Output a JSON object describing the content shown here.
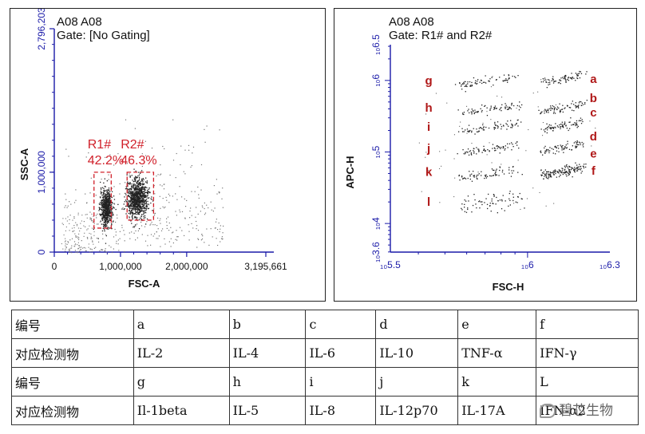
{
  "chart_data": [
    {
      "type": "scatter",
      "title": [
        "A08 A08",
        "Gate: [No Gating]"
      ],
      "xlabel": "FSC-A",
      "ylabel": "SSC-A",
      "xlim": [
        0,
        3195661
      ],
      "ylim": [
        0,
        2796203
      ],
      "xticks": [
        "0",
        "1,000,000",
        "2,000,000",
        "3,195,661"
      ],
      "yticks": [
        "0",
        "1,000,000",
        "2,796,203"
      ],
      "gates": [
        {
          "name": "R1#",
          "percent": "42.2%",
          "x_range": [
            600000,
            860000
          ],
          "y_range": [
            300000,
            1000000
          ]
        },
        {
          "name": "R2#",
          "percent": "46.3%",
          "x_range": [
            1100000,
            1500000
          ],
          "y_range": [
            400000,
            1000000
          ]
        }
      ],
      "populations": [
        {
          "name": "R1# cluster",
          "x": 780000,
          "y": 560000
        },
        {
          "name": "R2# cluster",
          "x": 1250000,
          "y": 680000
        }
      ]
    },
    {
      "type": "scatter",
      "title": [
        "A08 A08",
        "Gate: R1# and R2#"
      ],
      "xlabel": "FSC-H",
      "ylabel": "APC-H",
      "x_scale": "log",
      "y_scale": "log",
      "xlim_log10": [
        5.5,
        6.3
      ],
      "ylim_log10": [
        3.6,
        6.5
      ],
      "xticks": [
        "10^5.5",
        "10^6",
        "10^6.3"
      ],
      "yticks": [
        "10^3.6",
        "10^4",
        "10^5",
        "10^6",
        "10^6.5"
      ],
      "bead_labels_left": [
        "g",
        "h",
        "i",
        "j",
        "k",
        "l"
      ],
      "bead_labels_right": [
        "a",
        "b",
        "c",
        "d",
        "e",
        "f"
      ],
      "bead_log10_apc": [
        6.0,
        5.6,
        5.35,
        5.05,
        4.7,
        4.3
      ]
    }
  ],
  "table": {
    "rows": [
      [
        "编号",
        "a",
        "b",
        "c",
        "d",
        "e",
        "f"
      ],
      [
        "对应检测物",
        "IL-2",
        "IL-4",
        "IL-6",
        "IL-10",
        "TNF-α",
        "IFN-γ"
      ],
      [
        "编号",
        "g",
        "h",
        "i",
        "j",
        "k",
        "L"
      ],
      [
        "对应检测物",
        "Il-1beta",
        "IL-5",
        "IL-8",
        "IL-12p70",
        "IL-17A",
        "IFN-α2"
      ]
    ]
  },
  "watermark": "碧芯生物"
}
